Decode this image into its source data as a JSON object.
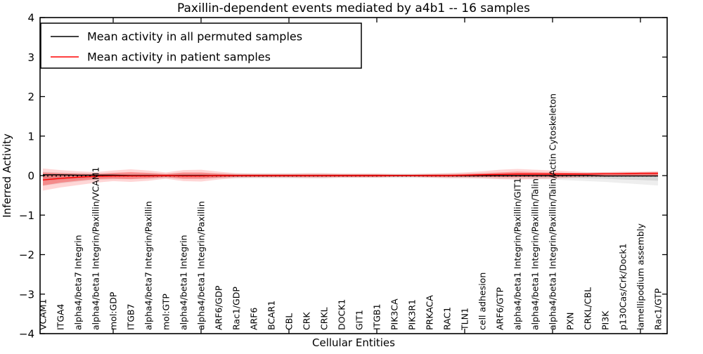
{
  "figure": {
    "background": "#ffffff"
  },
  "chart_data": {
    "type": "line",
    "title": "Paxillin-dependent events mediated by a4b1 -- 16 samples",
    "xlabel": "Cellular Entities",
    "ylabel": "Inferred Activity",
    "ylim": [
      -4,
      4
    ],
    "grid": false,
    "frame_color": "#000000",
    "zero_line": {
      "value": 0,
      "style": "dotted",
      "color": "#000000"
    },
    "ytick_labels": [
      "4",
      "3",
      "2",
      "1",
      "0",
      "−1",
      "−2",
      "−3",
      "−4"
    ],
    "ytick_values": [
      4,
      3,
      2,
      1,
      0,
      -1,
      -2,
      -3,
      -4
    ],
    "xtick_indices": [
      4,
      9,
      14,
      19,
      24,
      29,
      34
    ],
    "categories": [
      "VCAM1",
      "ITGA4",
      "alpha4/beta7 Integrin",
      "alpha4/beta1 Integrin/Paxillin/VCAM1",
      "mol:GDP",
      "ITGB7",
      "alpha4/beta7 Integrin/Paxillin",
      "mol:GTP",
      "alpha4/beta1 Integrin",
      "alpha4/beta1 Integrin/Paxillin",
      "ARF6/GDP",
      "Rac1/GDP",
      "ARF6",
      "BCAR1",
      "CBL",
      "CRK",
      "CRKL",
      "DOCK1",
      "GIT1",
      "ITGB1",
      "PIK3CA",
      "PIK3R1",
      "PRKACA",
      "RAC1",
      "TLN1",
      "cell adhesion",
      "ARF6/GTP",
      "alpha4/beta1 Integrin/Paxillin/GIT1",
      "alpha4/beta1 Integrin/Paxillin/Talin",
      "alpha4/beta1 Integrin/Paxillin/Talin/Actin Cytoskeleton",
      "PXN",
      "CRKL/CBL",
      "PI3K",
      "p130Cas/Crk/Dock1",
      "lamellipodium assembly",
      "Rac1/GTP"
    ],
    "series": [
      {
        "name": "Mean activity in all permuted samples",
        "color": "#000000",
        "values": [
          0.02,
          0.02,
          0.01,
          0.01,
          0.01,
          0.0,
          0.0,
          0.0,
          0.0,
          0.0,
          0.0,
          0.0,
          0.0,
          0.0,
          0.0,
          0.0,
          0.0,
          0.0,
          0.0,
          0.0,
          0.0,
          0.0,
          0.0,
          0.0,
          0.0,
          0.0,
          0.0,
          0.0,
          0.0,
          0.0,
          0.0,
          0.0,
          -0.01,
          -0.01,
          -0.01,
          -0.01
        ]
      },
      {
        "name": "Mean activity in patient samples",
        "color": "#ff0000",
        "values": [
          -0.11,
          -0.07,
          -0.04,
          -0.02,
          -0.01,
          -0.01,
          -0.01,
          0.0,
          -0.01,
          -0.01,
          0.0,
          0.0,
          0.0,
          0.0,
          0.0,
          0.0,
          0.0,
          0.0,
          0.0,
          0.0,
          0.0,
          0.0,
          0.0,
          0.0,
          0.01,
          0.02,
          0.03,
          0.04,
          0.04,
          0.04,
          0.04,
          0.04,
          0.05,
          0.05,
          0.06,
          0.06
        ]
      }
    ],
    "bands": [
      {
        "name": "permuted-range-outer",
        "color": "#888888",
        "opacity": 0.14,
        "upper": [
          0.1,
          0.08,
          0.07,
          0.06,
          0.06,
          0.06,
          0.06,
          0.05,
          0.06,
          0.06,
          0.06,
          0.06,
          0.06,
          0.06,
          0.06,
          0.06,
          0.06,
          0.05,
          0.05,
          0.05,
          0.05,
          0.05,
          0.05,
          0.06,
          0.06,
          0.06,
          0.06,
          0.07,
          0.07,
          0.07,
          0.07,
          0.08,
          0.08,
          0.09,
          0.09,
          0.1
        ],
        "lower": [
          -0.26,
          -0.2,
          -0.15,
          -0.11,
          -0.09,
          -0.08,
          -0.08,
          -0.07,
          -0.08,
          -0.08,
          -0.07,
          -0.07,
          -0.07,
          -0.07,
          -0.07,
          -0.07,
          -0.07,
          -0.06,
          -0.06,
          -0.06,
          -0.06,
          -0.06,
          -0.06,
          -0.07,
          -0.07,
          -0.07,
          -0.08,
          -0.08,
          -0.09,
          -0.1,
          -0.12,
          -0.14,
          -0.16,
          -0.19,
          -0.22,
          -0.25
        ]
      },
      {
        "name": "permuted-range-inner",
        "color": "#888888",
        "opacity": 0.22,
        "upper": [
          0.05,
          0.04,
          0.04,
          0.03,
          0.03,
          0.03,
          0.03,
          0.03,
          0.03,
          0.03,
          0.03,
          0.03,
          0.03,
          0.03,
          0.03,
          0.03,
          0.03,
          0.03,
          0.03,
          0.03,
          0.03,
          0.03,
          0.03,
          0.03,
          0.03,
          0.03,
          0.03,
          0.04,
          0.04,
          0.04,
          0.04,
          0.04,
          0.04,
          0.05,
          0.05,
          0.05
        ],
        "lower": [
          -0.14,
          -0.1,
          -0.08,
          -0.06,
          -0.05,
          -0.04,
          -0.04,
          -0.04,
          -0.04,
          -0.04,
          -0.04,
          -0.04,
          -0.04,
          -0.04,
          -0.04,
          -0.04,
          -0.04,
          -0.03,
          -0.03,
          -0.03,
          -0.03,
          -0.03,
          -0.03,
          -0.04,
          -0.04,
          -0.04,
          -0.04,
          -0.04,
          -0.05,
          -0.05,
          -0.06,
          -0.07,
          -0.08,
          -0.1,
          -0.11,
          -0.13
        ]
      },
      {
        "name": "patient-range-outer",
        "color": "#ff0000",
        "opacity": 0.16,
        "upper": [
          0.18,
          0.14,
          0.11,
          0.09,
          0.13,
          0.16,
          0.13,
          0.08,
          0.14,
          0.15,
          0.1,
          0.06,
          0.05,
          0.05,
          0.05,
          0.06,
          0.06,
          0.05,
          0.05,
          0.05,
          0.04,
          0.04,
          0.05,
          0.06,
          0.08,
          0.11,
          0.15,
          0.17,
          0.15,
          0.13,
          0.11,
          0.09,
          0.09,
          0.1,
          0.1,
          0.11
        ],
        "lower": [
          -0.38,
          -0.3,
          -0.24,
          -0.18,
          -0.14,
          -0.16,
          -0.13,
          -0.08,
          -0.14,
          -0.15,
          -0.1,
          -0.06,
          -0.05,
          -0.05,
          -0.05,
          -0.06,
          -0.06,
          -0.05,
          -0.05,
          -0.05,
          -0.04,
          -0.04,
          -0.05,
          -0.06,
          -0.06,
          -0.07,
          -0.09,
          -0.1,
          -0.09,
          -0.08,
          -0.06,
          -0.04,
          -0.03,
          -0.02,
          -0.02,
          -0.02
        ]
      },
      {
        "name": "patient-range-inner",
        "color": "#ff0000",
        "opacity": 0.3,
        "upper": [
          0.08,
          0.06,
          0.05,
          0.04,
          0.07,
          0.09,
          0.07,
          0.04,
          0.08,
          0.08,
          0.05,
          0.03,
          0.03,
          0.03,
          0.03,
          0.03,
          0.03,
          0.03,
          0.03,
          0.03,
          0.02,
          0.02,
          0.03,
          0.03,
          0.04,
          0.06,
          0.08,
          0.1,
          0.09,
          0.08,
          0.07,
          0.06,
          0.06,
          0.07,
          0.07,
          0.08
        ],
        "lower": [
          -0.25,
          -0.18,
          -0.13,
          -0.09,
          -0.08,
          -0.09,
          -0.07,
          -0.04,
          -0.08,
          -0.08,
          -0.05,
          -0.03,
          -0.03,
          -0.03,
          -0.03,
          -0.03,
          -0.03,
          -0.03,
          -0.03,
          -0.03,
          -0.02,
          -0.02,
          -0.03,
          -0.03,
          -0.03,
          -0.03,
          -0.04,
          -0.04,
          -0.03,
          -0.03,
          -0.02,
          -0.01,
          -0.01,
          0.0,
          0.0,
          0.0
        ]
      }
    ],
    "legend": {
      "position": "upper left",
      "entries": [
        {
          "label": "Mean activity in all permuted samples",
          "color": "#000000"
        },
        {
          "label": "Mean activity in patient samples",
          "color": "#ff0000"
        }
      ]
    }
  }
}
